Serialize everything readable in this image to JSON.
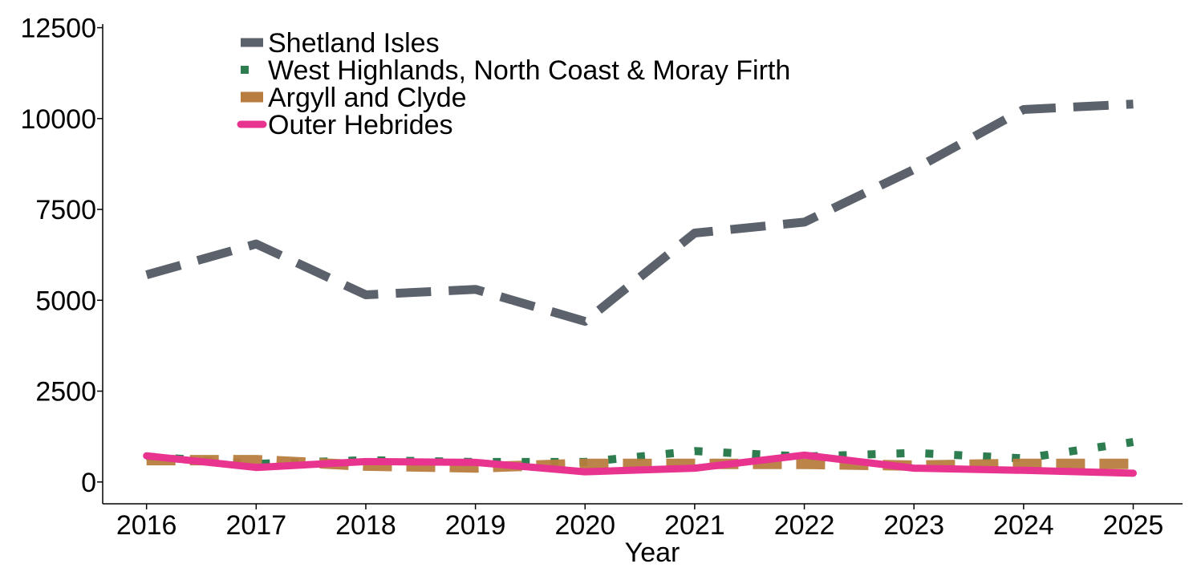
{
  "chart_data": {
    "type": "line",
    "title": "",
    "xlabel": "Year",
    "ylabel": "",
    "x": [
      2016,
      2017,
      2018,
      2019,
      2020,
      2021,
      2022,
      2023,
      2024,
      2025
    ],
    "x_tick_labels": [
      "2016",
      "2017",
      "2018",
      "2019",
      "2020",
      "2021",
      "2022",
      "2023",
      "2024",
      "2025"
    ],
    "y_ticks": [
      0,
      2500,
      5000,
      7500,
      10000,
      12500
    ],
    "y_tick_labels": [
      "0",
      "2500",
      "5000",
      "7500",
      "10000",
      "12500"
    ],
    "xlim": [
      2015.6,
      2025.45
    ],
    "ylim": [
      -600,
      12600
    ],
    "grid": false,
    "legend_position": "top-left",
    "series": [
      {
        "name": "Shetland Isles",
        "color": "#5b626b",
        "dash": "dashed",
        "values": [
          5700,
          6550,
          5150,
          5300,
          4420,
          6850,
          7150,
          8600,
          10250,
          10400
        ]
      },
      {
        "name": "West Highlands, North Coast & Moray Firth",
        "color": "#2e7d50",
        "dash": "dotted",
        "values": [
          700,
          500,
          600,
          550,
          550,
          850,
          700,
          800,
          650,
          1100
        ]
      },
      {
        "name": "Argyll and Clyde",
        "color": "#b87d3e",
        "dash": "longdash",
        "values": [
          600,
          600,
          450,
          400,
          500,
          500,
          500,
          450,
          500,
          500
        ]
      },
      {
        "name": "Outer Hebrides",
        "color": "#e8338f",
        "dash": "solid",
        "values": [
          720,
          400,
          560,
          540,
          280,
          380,
          740,
          380,
          320,
          240
        ]
      }
    ]
  }
}
